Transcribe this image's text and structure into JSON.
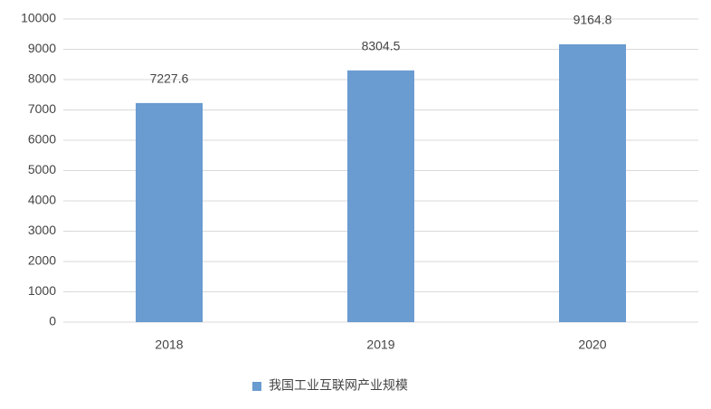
{
  "chart_data": {
    "type": "bar",
    "categories": [
      "2018",
      "2019",
      "2020"
    ],
    "series": [
      {
        "name": "我国工业互联网产业规模",
        "color": "#6a9bd1",
        "values": [
          7227.6,
          8304.5,
          9164.8
        ]
      }
    ],
    "ylim": [
      0,
      10000
    ],
    "yticks": [
      0,
      1000,
      2000,
      3000,
      4000,
      5000,
      6000,
      7000,
      8000,
      9000,
      10000
    ],
    "grid": true,
    "legend": "bottom"
  }
}
